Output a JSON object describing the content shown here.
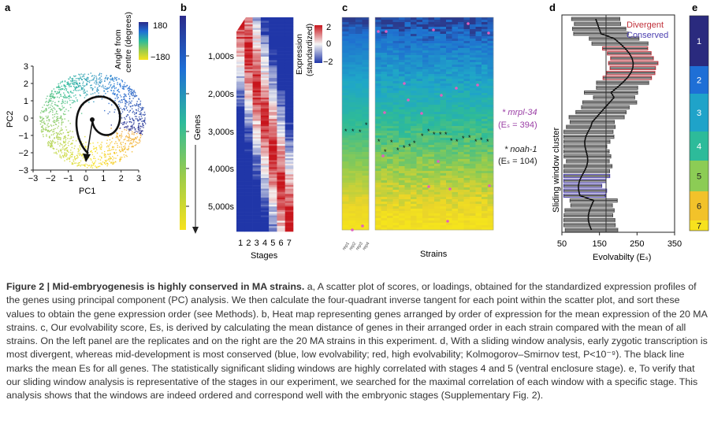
{
  "panel_labels": {
    "a": "a",
    "b": "b",
    "c": "c",
    "d": "d",
    "e": "e"
  },
  "panel_a": {
    "colorbar_title_1": "Angle from",
    "colorbar_title_2": "centre (degrees)",
    "colorbar_top": "180",
    "colorbar_bottom": "−180",
    "xlabel": "PC1",
    "ylabel": "PC2",
    "x_ticks": [
      "−3",
      "−2",
      "−1",
      "0",
      "1",
      "2",
      "3"
    ],
    "y_ticks": [
      "3",
      "2",
      "1",
      "0",
      "−1",
      "−2",
      "−3"
    ]
  },
  "panel_b": {
    "genes_label": "Genes",
    "gene_ticks": [
      "1,000s",
      "2,000s",
      "3,000s",
      "4,000s",
      "5,000s"
    ],
    "stage_ticks": [
      "1",
      "2",
      "3",
      "4",
      "5",
      "6",
      "7"
    ],
    "xlabel": "Stages",
    "colorbar_title_1": "Expression",
    "colorbar_title_2": "(standardized)",
    "colorbar_ticks": [
      "2",
      "0",
      "−2"
    ]
  },
  "panel_c": {
    "xlabel": "Strains",
    "replicate_labels": [
      "rep1",
      "rep2",
      "rep3",
      "rep4"
    ],
    "annotation_1_gene": "* mrpl-34",
    "annotation_1_value": "(Eₛ = 394)",
    "annotation_2_gene": "* noah-1",
    "annotation_2_value": "(Eₛ = 104)",
    "annotation_1_color": "#9b3fa6",
    "annotation_2_color": "#222222"
  },
  "panel_d": {
    "ylabel": "Sliding window cluster",
    "xlabel": "Evolvabilty (Eₛ)",
    "x_ticks": [
      "50",
      "150",
      "250",
      "350"
    ],
    "legend_divergent": "Divergent",
    "legend_conserved": "Conserved",
    "divergent_color": "#c0303a",
    "conserved_color": "#4b3fb0"
  },
  "panel_e": {
    "stages": [
      "1",
      "2",
      "3",
      "4",
      "5",
      "6",
      "7"
    ],
    "stage_colors": [
      "#2a2a7e",
      "#1e6fd6",
      "#1fa3c9",
      "#2dbb9a",
      "#8ccc55",
      "#f2c22a",
      "#f7e21d"
    ]
  },
  "caption": {
    "title": "Figure 2 | Mid-embryogenesis is highly conserved in MA strains.",
    "text": " a, A scatter plot of scores, or loadings, obtained for the standardized expression profiles of the genes using principal component (PC) analysis. We then calculate the four-quadrant inverse tangent for each point within the scatter plot, and sort these values to obtain the gene expression order (see Methods). b, Heat map representing genes arranged by order of expression for the mean expression of the 20 MA strains. c, Our evolvability score, Es, is derived by calculating the mean distance of genes in their arranged order in each strain compared with the mean of all strains. On the left panel are the replicates and on the right are the 20 MA strains in this experiment. d, With a sliding window analysis, early zygotic transcription is most divergent, whereas mid-development is most conserved (blue, low evolvability; red, high evolvability; Kolmogorov–Smirnov test, P<10⁻⁹). The black line marks the mean Es for all genes. The statistically significant sliding windows are highly correlated with stages 4 and 5 (ventral enclosure stage). e, To verify that our sliding window analysis is representative of the stages in our experiment, we searched for the maximal correlation of each window with a specific stage. This analysis shows that the windows are indeed ordered and correspond well with the embryonic stages (Supplementary Fig. 2)."
  }
}
